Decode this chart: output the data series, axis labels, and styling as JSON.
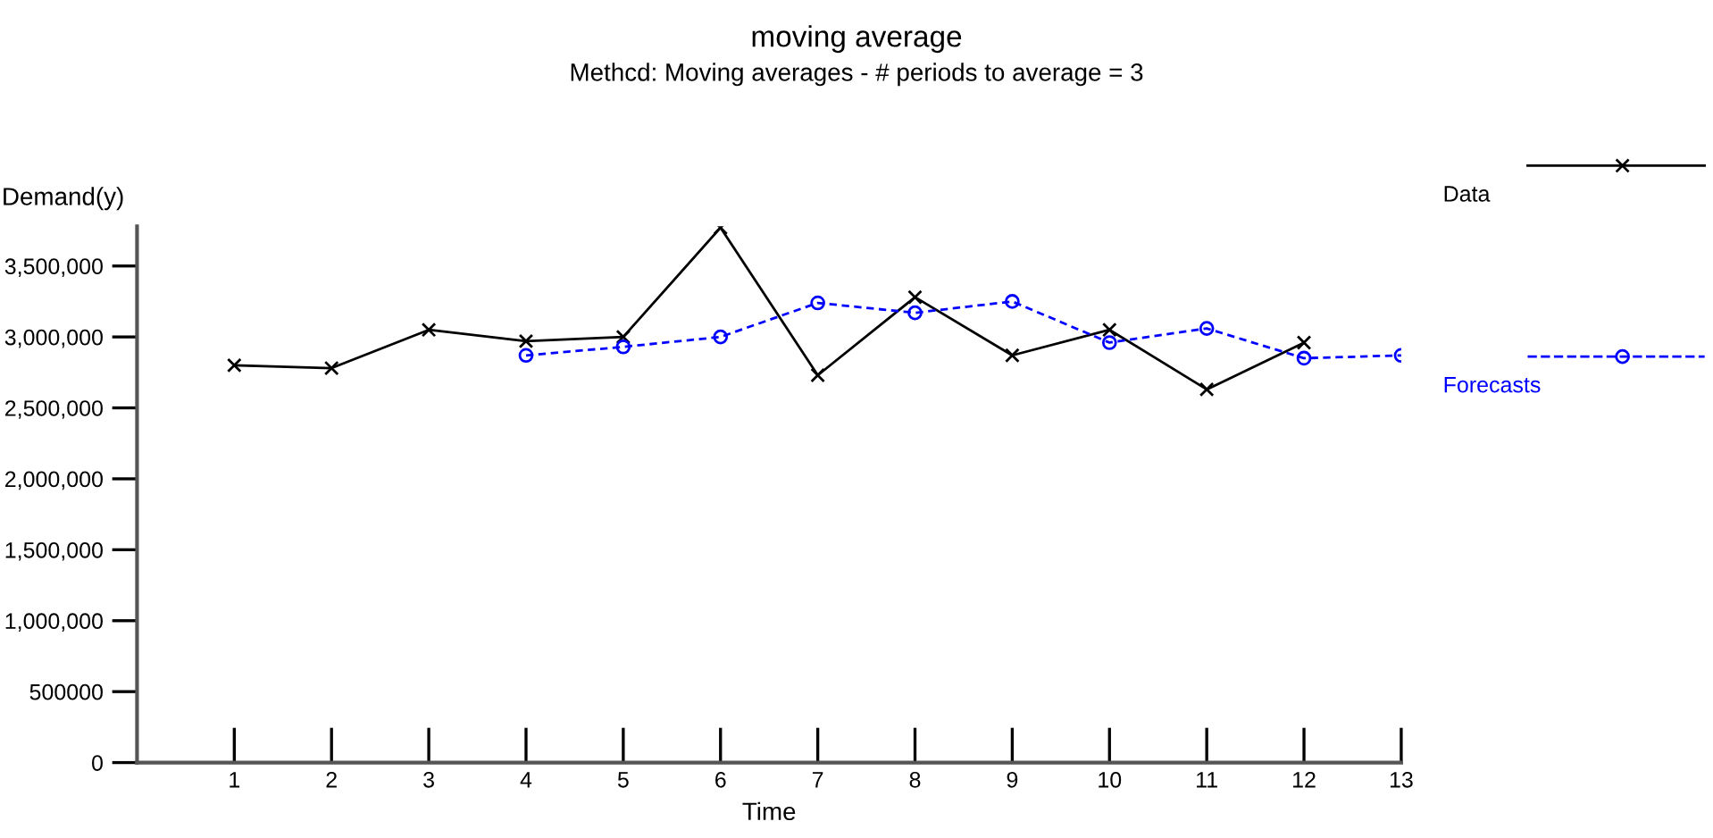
{
  "chart_data": {
    "type": "line",
    "title": "moving average",
    "subtitle": "Methcd: Moving averages - # periods to average = 3",
    "xlabel": "Time",
    "ylabel": "Demand(y)",
    "xlim": [
      0,
      13
    ],
    "xticks": [
      1,
      2,
      3,
      4,
      5,
      6,
      7,
      8,
      9,
      10,
      11,
      12,
      13
    ],
    "ylim": [
      0,
      3780000
    ],
    "yticks": [
      0,
      500000,
      {
        "value": 1000000,
        "label": "1,000,000"
      },
      {
        "value": 1500000,
        "label": "1,500,000"
      },
      {
        "value": 2000000,
        "label": "2,000,000"
      },
      {
        "value": 2500000,
        "label": "2,500,000"
      },
      {
        "value": 3000000,
        "label": "3,000,000"
      },
      {
        "value": 3500000,
        "label": "3,500,000"
      }
    ],
    "grid": false,
    "legend": "right",
    "series": [
      {
        "name": "Data",
        "color": "#000000",
        "marker": "cross",
        "line_style": "solid",
        "x": [
          1,
          2,
          3,
          4,
          5,
          6,
          7,
          8,
          9,
          10,
          11,
          12
        ],
        "values": [
          2800000,
          2780000,
          3050000,
          2970000,
          3000000,
          3770000,
          2730000,
          3280000,
          2870000,
          3050000,
          2630000,
          2960000
        ]
      },
      {
        "name": "Forecasts",
        "color": "#0000ff",
        "marker": "circle",
        "line_style": "dashed",
        "x": [
          4,
          5,
          6,
          7,
          8,
          9,
          10,
          11,
          12,
          13
        ],
        "values": [
          2870000,
          2930000,
          3000000,
          3240000,
          3170000,
          3250000,
          2960000,
          3060000,
          2850000,
          2870000
        ]
      }
    ]
  }
}
